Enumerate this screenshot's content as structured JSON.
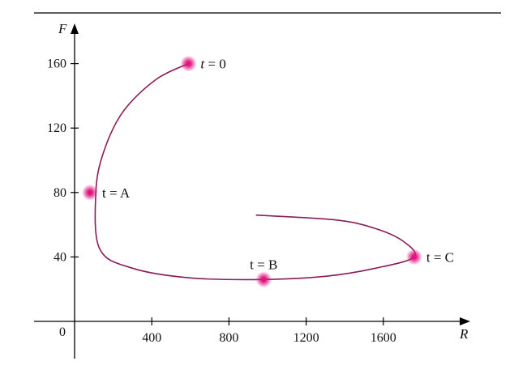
{
  "chart_data": {
    "type": "line",
    "xlabel": "R",
    "ylabel": "F",
    "origin_label": "0",
    "xlim": [
      -200,
      2000
    ],
    "ylim": [
      -20,
      180
    ],
    "x_ticks": [
      400,
      800,
      1200,
      1600
    ],
    "y_ticks": [
      40,
      80,
      120,
      160
    ],
    "grid": false,
    "series": [
      {
        "points": [
          [
            590,
            160
          ],
          [
            420,
            150
          ],
          [
            250,
            130
          ],
          [
            150,
            105
          ],
          [
            110,
            80
          ],
          [
            130,
            45
          ],
          [
            300,
            33
          ],
          [
            600,
            27
          ],
          [
            980,
            26
          ],
          [
            1300,
            28
          ],
          [
            1560,
            33
          ],
          [
            1760,
            40
          ],
          [
            1700,
            50
          ],
          [
            1550,
            58
          ],
          [
            1350,
            63
          ],
          [
            940,
            66
          ]
        ]
      }
    ],
    "color": "#8a1c5a",
    "marker_color": "#e0157f",
    "annotations": [
      {
        "italic": "t",
        "text": " = 0",
        "x": 590,
        "y": 160,
        "placement": "right"
      },
      {
        "italic": "",
        "text": "t = A",
        "x": 80,
        "y": 80,
        "placement": "right"
      },
      {
        "italic": "",
        "text": "t = B",
        "x": 980,
        "y": 26,
        "placement": "above"
      },
      {
        "italic": "",
        "text": "t = C",
        "x": 1760,
        "y": 40,
        "placement": "right"
      }
    ]
  }
}
